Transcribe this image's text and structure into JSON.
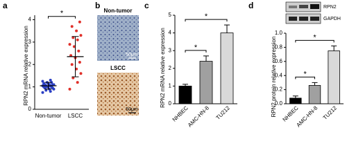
{
  "panel_labels": [
    "a",
    "b",
    "c",
    "d"
  ],
  "chart_data": [
    {
      "type": "dot",
      "ylabel": "RPN2 mRNA relative expression",
      "categories": [
        "Non-tumor",
        "LSCC"
      ],
      "points": [
        [
          0.75,
          0.8,
          0.85,
          0.9,
          0.9,
          0.95,
          0.95,
          1.0,
          1.0,
          1.0,
          1.0,
          1.05,
          1.05,
          1.05,
          1.1,
          1.1,
          1.1,
          1.1,
          1.15,
          1.15,
          1.2,
          1.2,
          1.25,
          1.3
        ],
        [
          0.9,
          1.2,
          1.4,
          1.6,
          1.8,
          2.0,
          2.1,
          2.3,
          2.4,
          2.6,
          2.8,
          2.9,
          3.1,
          3.2,
          3.3,
          3.5,
          3.7,
          3.9
        ]
      ],
      "means": [
        1.05,
        2.35
      ],
      "sd": [
        0.15,
        0.9
      ],
      "colors": [
        "#2a3fc4",
        "#e0302a"
      ],
      "ylim": [
        0,
        4.2
      ],
      "yticks": [
        0,
        1,
        2,
        3,
        4
      ],
      "significance": [
        {
          "pair": [
            0,
            1
          ],
          "label": "*"
        }
      ]
    },
    {
      "type": "bar",
      "ylabel": "RPN2 mRNA relative expression",
      "categories": [
        "NHBEC",
        "AMC-HN-8",
        "TU212"
      ],
      "values": [
        1.0,
        2.4,
        4.0
      ],
      "errors": [
        0.1,
        0.3,
        0.45
      ],
      "colors": [
        "#000000",
        "#a0a0a0",
        "#d9d9d9"
      ],
      "ylim": [
        0,
        5
      ],
      "yticks": [
        0,
        1,
        2,
        3,
        4,
        5
      ],
      "significance": [
        {
          "pair": [
            0,
            1
          ],
          "label": "*"
        },
        {
          "pair": [
            0,
            2
          ],
          "label": "*"
        }
      ]
    },
    {
      "type": "bar",
      "ylabel": "RPN2 protein relative expression",
      "categories": [
        "NHBEC",
        "AMC-HN-8",
        "TU212"
      ],
      "values": [
        0.08,
        0.26,
        0.75
      ],
      "errors": [
        0.03,
        0.04,
        0.07
      ],
      "colors": [
        "#000000",
        "#a0a0a0",
        "#d9d9d9"
      ],
      "ylim": [
        0,
        1
      ],
      "yticks": [
        {
          "value": 0,
          "label": "0.0"
        },
        0.2,
        0.4,
        0.6,
        0.8,
        {
          "value": 1,
          "label": "1.0"
        }
      ],
      "significance": [
        {
          "pair": [
            0,
            1
          ],
          "label": "*"
        },
        {
          "pair": [
            0,
            2
          ],
          "label": "*"
        }
      ]
    }
  ],
  "images": [
    {
      "label": "Non-tumor",
      "scale": "50μm"
    },
    {
      "label": "LSCC",
      "scale": "50μm"
    }
  ],
  "blot": {
    "bands": [
      "RPN2",
      "GAPDH"
    ]
  }
}
